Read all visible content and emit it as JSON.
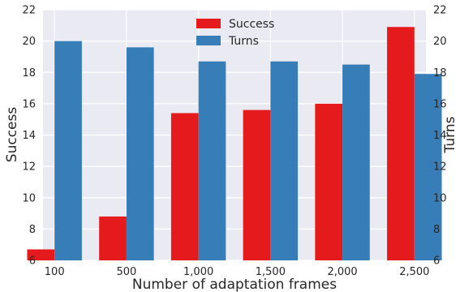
{
  "chart_data": {
    "type": "bar",
    "title": "",
    "xlabel": "Number of adaptation frames",
    "ylabel_left": "Success",
    "ylabel_right": "Turns",
    "categories": [
      "100",
      "500",
      "1,000",
      "1,500",
      "2,000",
      "2,500"
    ],
    "ylim": [
      6,
      22
    ],
    "yticks": [
      "6",
      "8",
      "10",
      "12",
      "14",
      "16",
      "18",
      "20",
      "22"
    ],
    "grid": true,
    "legend_position": "top-center",
    "series": [
      {
        "name": "Success",
        "axis": "left",
        "color": "#e41a1c",
        "values": [
          6.7,
          8.8,
          15.4,
          15.6,
          16.0,
          20.9
        ]
      },
      {
        "name": "Turns",
        "axis": "right",
        "color": "#377eb8",
        "values": [
          20.0,
          19.6,
          18.7,
          18.7,
          18.5,
          17.9
        ]
      }
    ]
  }
}
